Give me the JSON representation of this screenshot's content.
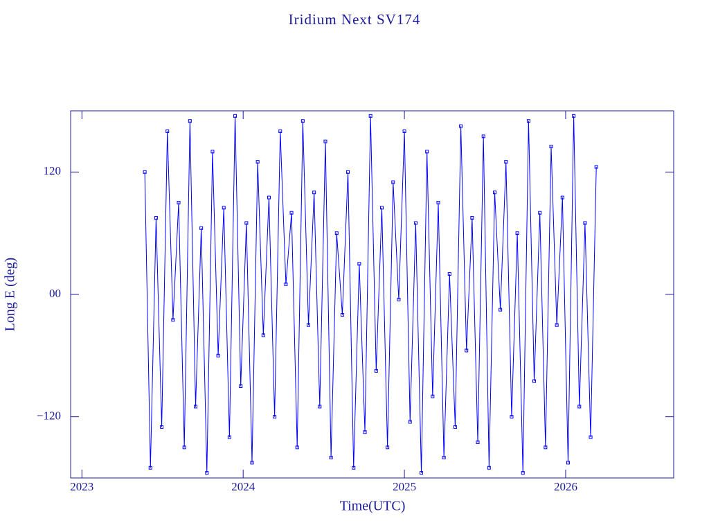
{
  "chart_data": {
    "type": "line",
    "title": "Iridium Next SV174",
    "xlabel": "Time(UTC)",
    "ylabel": "Long E (deg)",
    "color": "#0000ff",
    "markers": true,
    "xlim": [
      2022.93,
      2026.67
    ],
    "xticks": [
      2023,
      2024,
      2025,
      2026
    ],
    "ylim": [
      -180,
      180
    ],
    "yticks": [
      {
        "value": -120,
        "label": "−120"
      },
      {
        "value": 0,
        "label": "00"
      },
      120
    ],
    "x": [
      2023.39,
      2023.425,
      2023.46,
      2023.495,
      2023.53,
      2023.565,
      2023.6,
      2023.635,
      2023.67,
      2023.705,
      2023.74,
      2023.775,
      2023.81,
      2023.845,
      2023.88,
      2023.915,
      2023.95,
      2023.985,
      2024.02,
      2024.055,
      2024.09,
      2024.125,
      2024.16,
      2024.195,
      2024.23,
      2024.265,
      2024.3,
      2024.335,
      2024.37,
      2024.405,
      2024.44,
      2024.475,
      2024.51,
      2024.545,
      2024.58,
      2024.615,
      2024.65,
      2024.685,
      2024.72,
      2024.755,
      2024.79,
      2024.825,
      2024.86,
      2024.895,
      2024.93,
      2024.965,
      2025.0,
      2025.035,
      2025.07,
      2025.105,
      2025.14,
      2025.175,
      2025.21,
      2025.245,
      2025.28,
      2025.315,
      2025.35,
      2025.385,
      2025.42,
      2025.455,
      2025.49,
      2025.525,
      2025.56,
      2025.595,
      2025.63,
      2025.665,
      2025.7,
      2025.735,
      2025.77,
      2025.805,
      2025.84,
      2025.875,
      2025.91,
      2025.945,
      2025.98,
      2026.015,
      2026.05,
      2026.085,
      2026.12,
      2026.155,
      2026.19
    ],
    "values": [
      120,
      -170,
      75,
      -130,
      160,
      -25,
      90,
      -150,
      170,
      -110,
      65,
      -175,
      140,
      -60,
      85,
      -140,
      175,
      -90,
      70,
      -165,
      130,
      -40,
      95,
      -120,
      160,
      10,
      80,
      -150,
      170,
      -30,
      100,
      -110,
      150,
      -160,
      60,
      -20,
      120,
      -170,
      30,
      -135,
      175,
      -75,
      85,
      -150,
      110,
      -5,
      160,
      -125,
      70,
      -175,
      140,
      -100,
      90,
      -160,
      20,
      -130,
      165,
      -55,
      75,
      -145,
      155,
      -170,
      100,
      -15,
      130,
      -120,
      60,
      -175,
      170,
      -85,
      80,
      -150,
      145,
      -30,
      95,
      -165,
      175,
      -110,
      70,
      -140,
      125
    ]
  }
}
